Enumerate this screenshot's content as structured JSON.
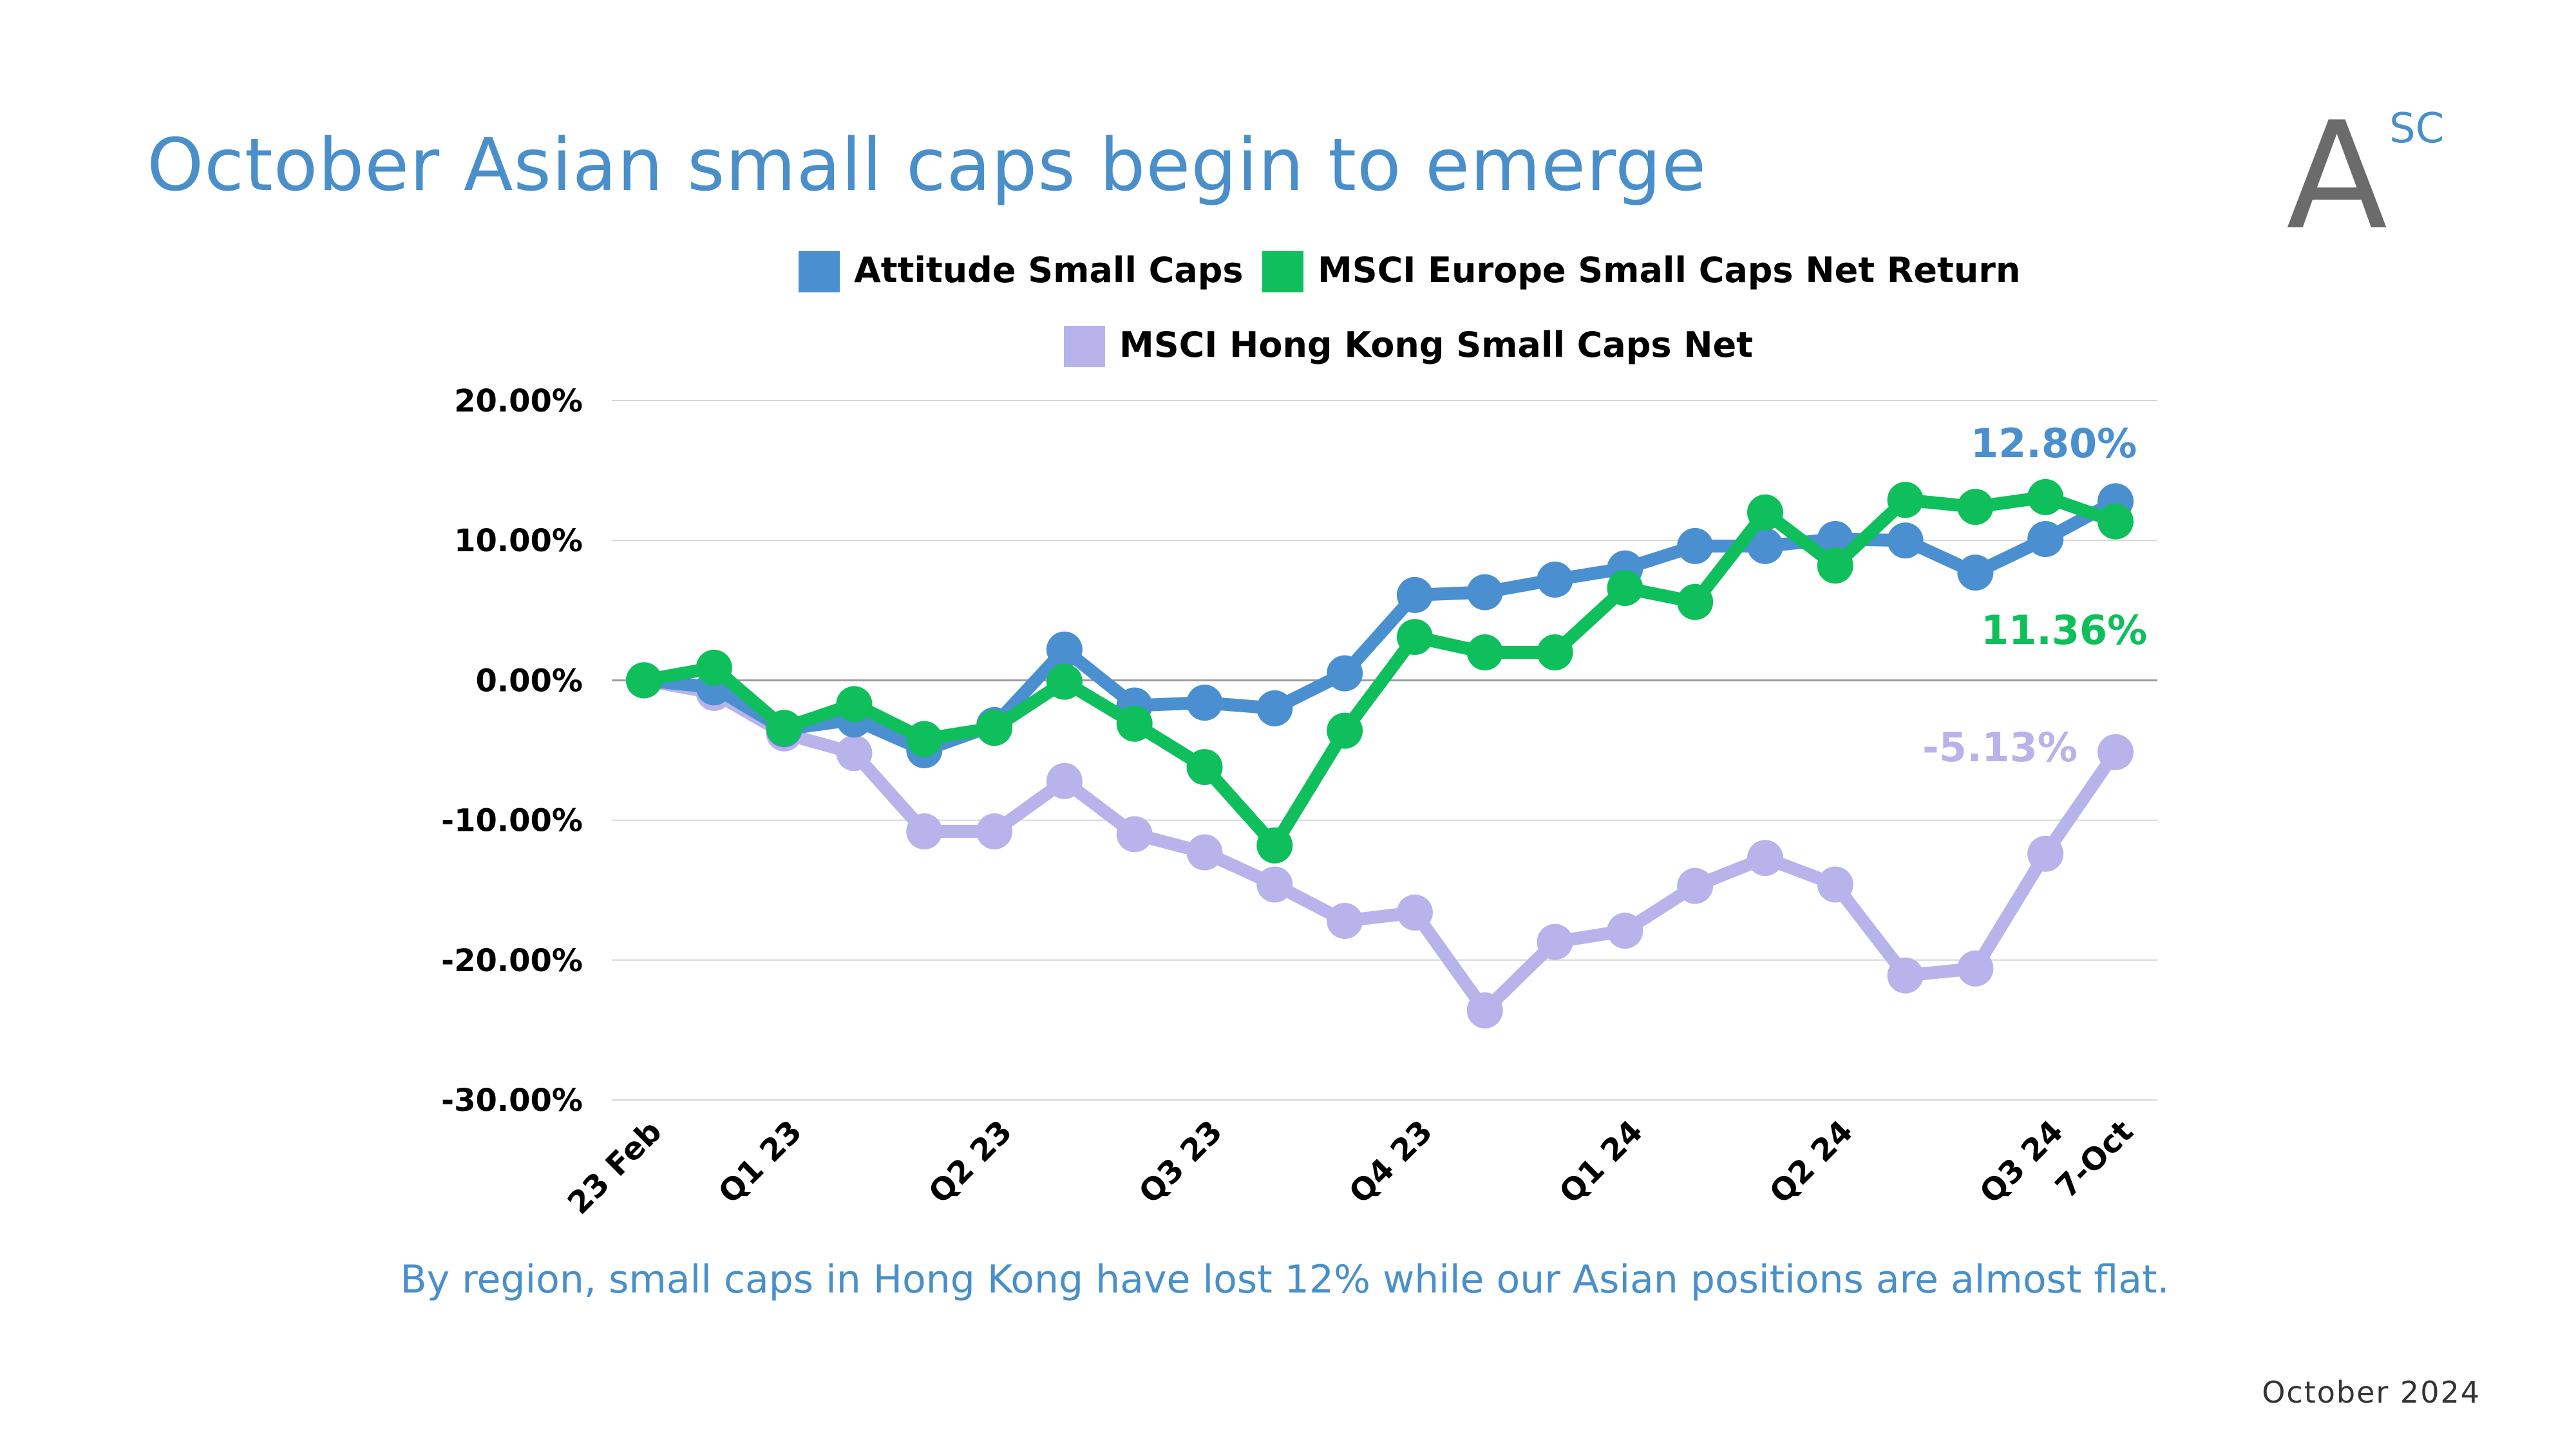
{
  "header": {
    "title": "October Asian small caps begin to emerge",
    "logo_main": "A",
    "logo_sup": "SC"
  },
  "footer": {
    "caption": "By region, small caps in Hong Kong have lost 12% while our Asian positions are almost flat.",
    "date": "October 2024"
  },
  "chart_data": {
    "type": "line",
    "title": "",
    "xlabel": "",
    "ylabel": "",
    "ylim": [
      -30,
      20
    ],
    "yticks": [
      20,
      10,
      0,
      -10,
      -20,
      -30
    ],
    "ytick_labels": [
      "20.00%",
      "10.00%",
      "0.00%",
      "-10.00%",
      "-20.00%",
      "-30.00%"
    ],
    "x_tick_labels": [
      "23 Feb",
      "",
      "Q1 23",
      "",
      "",
      "Q2 23",
      "",
      "",
      "Q3 23",
      "",
      "",
      "Q4 23",
      "",
      "",
      "Q1 24",
      "",
      "",
      "Q2 24",
      "",
      "",
      "Q3 24",
      "7-Oct"
    ],
    "grid": true,
    "legend_position": "top",
    "series": [
      {
        "name": "Attitude Small Caps",
        "color": "#4a8fd0",
        "values": [
          0.0,
          -0.5,
          -3.5,
          -2.8,
          -5.0,
          -3.2,
          2.2,
          -1.8,
          -1.6,
          -2.0,
          0.5,
          6.1,
          6.3,
          7.2,
          8.0,
          9.6,
          9.6,
          10.1,
          10.0,
          7.7,
          10.1,
          12.8
        ],
        "end_label": "12.80%"
      },
      {
        "name": "MSCI Europe Small Caps Net Return",
        "color": "#0ebf5c",
        "values": [
          0.0,
          0.9,
          -3.4,
          -1.7,
          -4.2,
          -3.4,
          -0.1,
          -3.1,
          -6.2,
          -11.8,
          -3.6,
          3.1,
          2.0,
          2.0,
          6.6,
          5.6,
          12.0,
          8.2,
          12.9,
          12.4,
          13.1,
          11.36
        ],
        "end_label": "11.36%"
      },
      {
        "name": "MSCI Hong Kong Small Caps Net",
        "color": "#b8b3ea",
        "values": [
          0.0,
          -0.9,
          -3.8,
          -5.2,
          -10.8,
          -10.8,
          -7.2,
          -11.0,
          -12.3,
          -14.6,
          -17.2,
          -16.6,
          -23.6,
          -18.7,
          -17.9,
          -14.7,
          -12.7,
          -14.6,
          -21.1,
          -20.6,
          -12.4,
          -5.13
        ],
        "end_label": "-5.13%"
      }
    ]
  }
}
